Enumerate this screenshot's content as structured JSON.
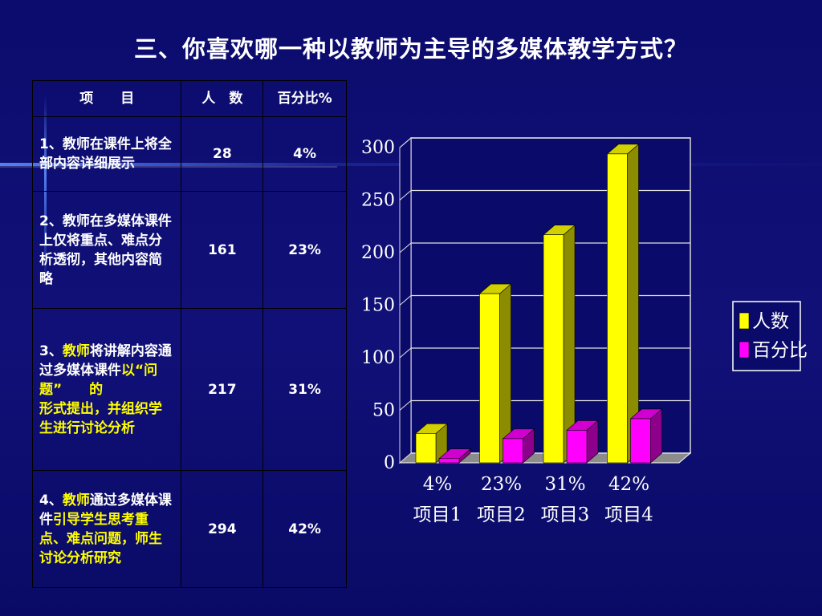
{
  "title": "三、你喜欢哪一种以教师为主导的多媒体教学方式？",
  "table": {
    "headers": [
      "项　　目",
      "人　数",
      "百分比%"
    ],
    "rows": [
      {
        "segments": [
          {
            "text": "1、教师在课件上将全部内容详细展示",
            "hl": false
          }
        ],
        "count": "28",
        "pct": "4%"
      },
      {
        "segments": [
          {
            "text": "2、教师在多媒体课件上仅将重点、难点分析透彻，其他内容简略",
            "hl": false
          }
        ],
        "count": "161",
        "pct": "23%"
      },
      {
        "segments": [
          {
            "text": "3、",
            "hl": false
          },
          {
            "text": "教师",
            "hl": true
          },
          {
            "text": "将讲解内容通过多媒体课件",
            "hl": false
          },
          {
            "text": "以“问题”　　的\n形式提出，并组织学生进行讨论分析",
            "hl": true
          }
        ],
        "count": "217",
        "pct": "31%"
      },
      {
        "segments": [
          {
            "text": "4、",
            "hl": false
          },
          {
            "text": "教师",
            "hl": true
          },
          {
            "text": "通过多媒体课件",
            "hl": false
          },
          {
            "text": "引导学生思考重点、难点问题，师生讨论分析研究",
            "hl": true
          }
        ],
        "count": "294",
        "pct": "42%"
      }
    ]
  },
  "chart_data": {
    "type": "bar",
    "categories": [
      "4%\n项目1",
      "23%\n项目2",
      "31%\n项目3",
      "42%\n项目4"
    ],
    "series": [
      {
        "name": "人数",
        "values": [
          28,
          161,
          217,
          294
        ],
        "color": "#ffff00"
      },
      {
        "name": "百分比",
        "values": [
          4,
          23,
          31,
          42
        ],
        "color": "#ff00ff"
      }
    ],
    "ylim": [
      0,
      300
    ],
    "yticks": [
      0,
      50,
      100,
      150,
      200,
      250,
      300
    ],
    "grid": true,
    "legend": "right",
    "three_d": true
  }
}
